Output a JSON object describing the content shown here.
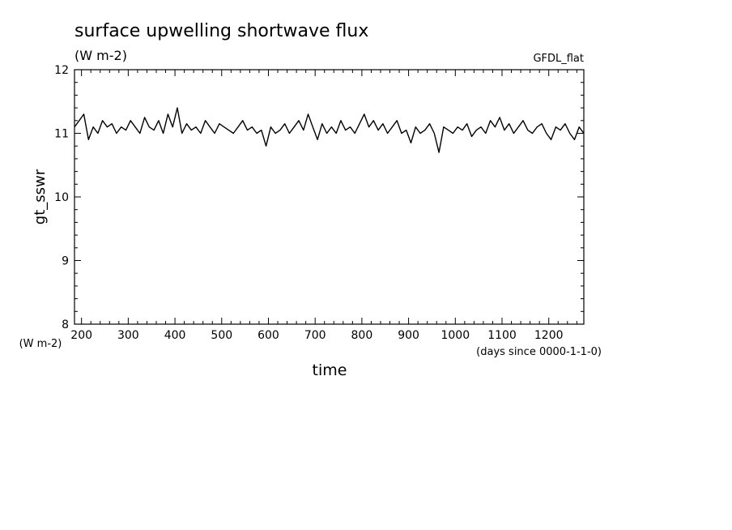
{
  "chart_data": {
    "type": "line",
    "title": "surface upwelling shortwave flux",
    "subtitle": "(W m-2)",
    "label_right": "GFDL_flat",
    "ylabel": "gt_sswr",
    "xlabel": "time",
    "x_units": "(days since 0000-1-1-0)",
    "y_units": "(W m-2)",
    "xlim": [
      185,
      1275
    ],
    "ylim": [
      8,
      12
    ],
    "x_ticks": [
      200,
      300,
      400,
      500,
      600,
      700,
      800,
      900,
      1000,
      1100,
      1200
    ],
    "x_tick_labels": [
      "200",
      "300",
      "400",
      "500",
      "600",
      "700",
      "800",
      "900",
      "1000",
      "1100",
      "1200"
    ],
    "y_ticks": [
      8,
      9,
      10,
      11,
      12
    ],
    "y_tick_labels": [
      "8",
      "9",
      "10",
      "11",
      "12"
    ],
    "grid": false,
    "series": [
      {
        "color": "#000000",
        "x": [
          185,
          195,
          205,
          215,
          225,
          235,
          245,
          255,
          265,
          275,
          285,
          295,
          305,
          315,
          325,
          335,
          345,
          355,
          365,
          375,
          385,
          395,
          405,
          415,
          425,
          435,
          445,
          455,
          465,
          475,
          485,
          495,
          505,
          515,
          525,
          535,
          545,
          555,
          565,
          575,
          585,
          595,
          605,
          615,
          625,
          635,
          645,
          655,
          665,
          675,
          685,
          695,
          705,
          715,
          725,
          735,
          745,
          755,
          765,
          775,
          785,
          795,
          805,
          815,
          825,
          835,
          845,
          855,
          865,
          875,
          885,
          895,
          905,
          915,
          925,
          935,
          945,
          955,
          965,
          975,
          985,
          995,
          1005,
          1015,
          1025,
          1035,
          1045,
          1055,
          1065,
          1075,
          1085,
          1095,
          1105,
          1115,
          1125,
          1135,
          1145,
          1155,
          1165,
          1175,
          1185,
          1195,
          1205,
          1215,
          1225,
          1235,
          1245,
          1255,
          1265,
          1275
        ],
        "y": [
          11.1,
          11.2,
          11.3,
          10.9,
          11.1,
          11.0,
          11.2,
          11.1,
          11.15,
          11.0,
          11.1,
          11.05,
          11.2,
          11.1,
          11.0,
          11.25,
          11.1,
          11.05,
          11.2,
          11.0,
          11.3,
          11.1,
          11.4,
          11.0,
          11.15,
          11.05,
          11.1,
          11.0,
          11.2,
          11.1,
          11.0,
          11.15,
          11.1,
          11.05,
          11.0,
          11.1,
          11.2,
          11.05,
          11.1,
          11.0,
          11.05,
          10.8,
          11.1,
          11.0,
          11.05,
          11.15,
          11.0,
          11.1,
          11.2,
          11.05,
          11.3,
          11.1,
          10.9,
          11.15,
          11.0,
          11.1,
          11.0,
          11.2,
          11.05,
          11.1,
          11.0,
          11.15,
          11.3,
          11.1,
          11.2,
          11.05,
          11.15,
          11.0,
          11.1,
          11.2,
          11.0,
          11.05,
          10.85,
          11.1,
          11.0,
          11.05,
          11.15,
          11.0,
          10.7,
          11.1,
          11.05,
          11.0,
          11.1,
          11.05,
          11.15,
          10.95,
          11.05,
          11.1,
          11.0,
          11.2,
          11.1,
          11.25,
          11.05,
          11.15,
          11.0,
          11.1,
          11.2,
          11.05,
          11.0,
          11.1,
          11.15,
          11.0,
          10.9,
          11.1,
          11.05,
          11.15,
          11.0,
          10.9,
          11.1,
          11.0
        ]
      }
    ]
  }
}
